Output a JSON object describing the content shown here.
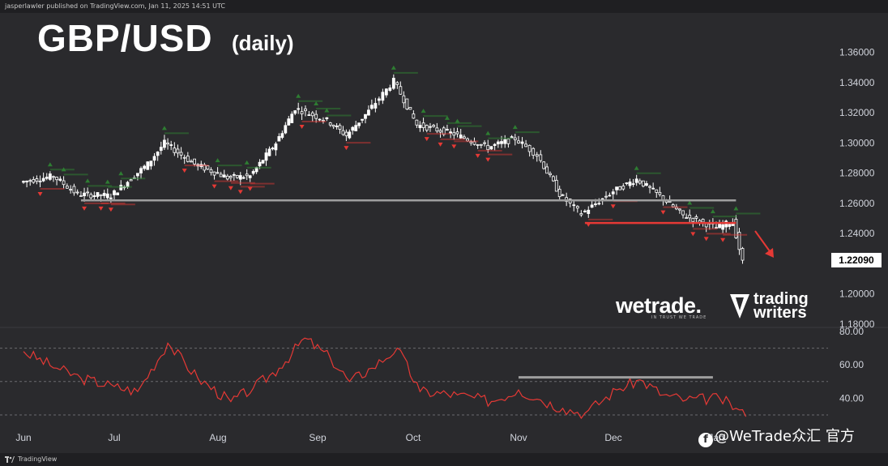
{
  "header": {
    "published_line": "jasperlawler published on TradingView.com, Jan 11, 2025 14:51 UTC"
  },
  "footer": {
    "brand": "TradingView"
  },
  "watermark": {
    "text": "@WeTrade众汇 官方"
  },
  "logos": {
    "wetrade": "wetrade.",
    "wetrade_tagline": "IN TRUST WE TRADE",
    "trading_writers_line1": "trading",
    "trading_writers_line2": "writers"
  },
  "colors": {
    "background": "#2a2a2d",
    "candle": "#ffffff",
    "resistance_line": "#e53935",
    "support_line": "#9e9e9e",
    "arrow_up": "#2e7d32",
    "arrow_down": "#e53935",
    "rsi_line": "#e53935"
  },
  "icons": {
    "direction_arrow": "red-down-arrow-icon",
    "facebook": "facebook-icon",
    "tradingview": "tradingview-logo-icon",
    "trading_writers": "triangle-feather-icon"
  },
  "chart_data": [
    {
      "type": "candlestick",
      "title": "GBP/USD",
      "subtitle": "(daily)",
      "xlabel": "",
      "ylabel": "",
      "ylim": [
        1.18,
        1.37
      ],
      "y_ticks": [
        "1.36000",
        "1.34000",
        "1.32000",
        "1.30000",
        "1.28000",
        "1.26000",
        "1.24000",
        "1.22000",
        "1.20000",
        "1.18000"
      ],
      "x_ticks": [
        "Jun",
        "Jul",
        "Aug",
        "Sep",
        "Oct",
        "Nov",
        "Dec",
        "Jan"
      ],
      "last_price": "1.22090",
      "grid": false,
      "closes": [
        {
          "month": "Jun",
          "day": 1,
          "value": 1.274
        },
        {
          "month": "Jun",
          "day": 12,
          "value": 1.278
        },
        {
          "month": "Jun",
          "day": 20,
          "value": 1.266
        },
        {
          "month": "Jul",
          "day": 1,
          "value": 1.265
        },
        {
          "month": "Jul",
          "day": 12,
          "value": 1.286
        },
        {
          "month": "Jul",
          "day": 17,
          "value": 1.3
        },
        {
          "month": "Jul",
          "day": 26,
          "value": 1.286
        },
        {
          "month": "Aug",
          "day": 5,
          "value": 1.277
        },
        {
          "month": "Aug",
          "day": 12,
          "value": 1.278
        },
        {
          "month": "Aug",
          "day": 20,
          "value": 1.3
        },
        {
          "month": "Aug",
          "day": 26,
          "value": 1.323
        },
        {
          "month": "Sep",
          "day": 5,
          "value": 1.315
        },
        {
          "month": "Sep",
          "day": 11,
          "value": 1.305
        },
        {
          "month": "Sep",
          "day": 18,
          "value": 1.321
        },
        {
          "month": "Sep",
          "day": 26,
          "value": 1.341
        },
        {
          "month": "Oct",
          "day": 3,
          "value": 1.312
        },
        {
          "month": "Oct",
          "day": 14,
          "value": 1.306
        },
        {
          "month": "Oct",
          "day": 24,
          "value": 1.297
        },
        {
          "month": "Nov",
          "day": 1,
          "value": 1.303
        },
        {
          "month": "Nov",
          "day": 8,
          "value": 1.292
        },
        {
          "month": "Nov",
          "day": 15,
          "value": 1.266
        },
        {
          "month": "Nov",
          "day": 22,
          "value": 1.253
        },
        {
          "month": "Dec",
          "day": 2,
          "value": 1.268
        },
        {
          "month": "Dec",
          "day": 9,
          "value": 1.276
        },
        {
          "month": "Dec",
          "day": 16,
          "value": 1.265
        },
        {
          "month": "Dec",
          "day": 23,
          "value": 1.252
        },
        {
          "month": "Jan",
          "day": 2,
          "value": 1.244
        },
        {
          "month": "Jan",
          "day": 7,
          "value": 1.248
        },
        {
          "month": "Jan",
          "day": 10,
          "value": 1.221
        }
      ],
      "horizontal_levels": [
        {
          "name": "support",
          "value": 1.262,
          "from": {
            "month": "Jun",
            "day": 20
          },
          "to": {
            "month": "Jan",
            "day": 7
          },
          "color": "#9e9e9e"
        },
        {
          "name": "resistance",
          "value": 1.247,
          "from": {
            "month": "Nov",
            "day": 22
          },
          "to": {
            "month": "Jan",
            "day": 7
          },
          "color": "#e53935"
        }
      ],
      "annotation": "red-down-arrow-icon"
    },
    {
      "type": "line",
      "title": "",
      "xlabel": "",
      "ylabel": "",
      "ylim": [
        30,
        80
      ],
      "y_ticks": [
        "80.00",
        "60.00",
        "40.00"
      ],
      "reference_lines": [
        70,
        50,
        30
      ],
      "series": [
        {
          "points": [
            {
              "month": "Jun",
              "day": 1,
              "value": 68
            },
            {
              "month": "Jun",
              "day": 12,
              "value": 58
            },
            {
              "month": "Jun",
              "day": 20,
              "value": 52
            },
            {
              "month": "Jul",
              "day": 1,
              "value": 47
            },
            {
              "month": "Jul",
              "day": 8,
              "value": 44
            },
            {
              "month": "Jul",
              "day": 17,
              "value": 73
            },
            {
              "month": "Jul",
              "day": 26,
              "value": 52
            },
            {
              "month": "Aug",
              "day": 5,
              "value": 38
            },
            {
              "month": "Aug",
              "day": 12,
              "value": 46
            },
            {
              "month": "Aug",
              "day": 20,
              "value": 58
            },
            {
              "month": "Aug",
              "day": 28,
              "value": 76
            },
            {
              "month": "Sep",
              "day": 5,
              "value": 64
            },
            {
              "month": "Sep",
              "day": 11,
              "value": 50
            },
            {
              "month": "Sep",
              "day": 18,
              "value": 58
            },
            {
              "month": "Sep",
              "day": 26,
              "value": 70
            },
            {
              "month": "Oct",
              "day": 3,
              "value": 44
            },
            {
              "month": "Oct",
              "day": 14,
              "value": 42
            },
            {
              "month": "Oct",
              "day": 24,
              "value": 38
            },
            {
              "month": "Nov",
              "day": 1,
              "value": 45
            },
            {
              "month": "Nov",
              "day": 8,
              "value": 39
            },
            {
              "month": "Nov",
              "day": 15,
              "value": 34
            },
            {
              "month": "Nov",
              "day": 22,
              "value": 31
            },
            {
              "month": "Dec",
              "day": 2,
              "value": 45
            },
            {
              "month": "Dec",
              "day": 9,
              "value": 51
            },
            {
              "month": "Dec",
              "day": 16,
              "value": 42
            },
            {
              "month": "Dec",
              "day": 23,
              "value": 39
            },
            {
              "month": "Jan",
              "day": 2,
              "value": 40
            },
            {
              "month": "Jan",
              "day": 7,
              "value": 34
            },
            {
              "month": "Jan",
              "day": 10,
              "value": 29
            }
          ]
        }
      ],
      "horizontal_levels": [
        {
          "name": "rsi-level",
          "value": 52.5,
          "from": {
            "month": "Nov",
            "day": 1
          },
          "to": {
            "month": "Dec",
            "day": 31
          },
          "color": "#9e9e9e"
        }
      ]
    }
  ]
}
